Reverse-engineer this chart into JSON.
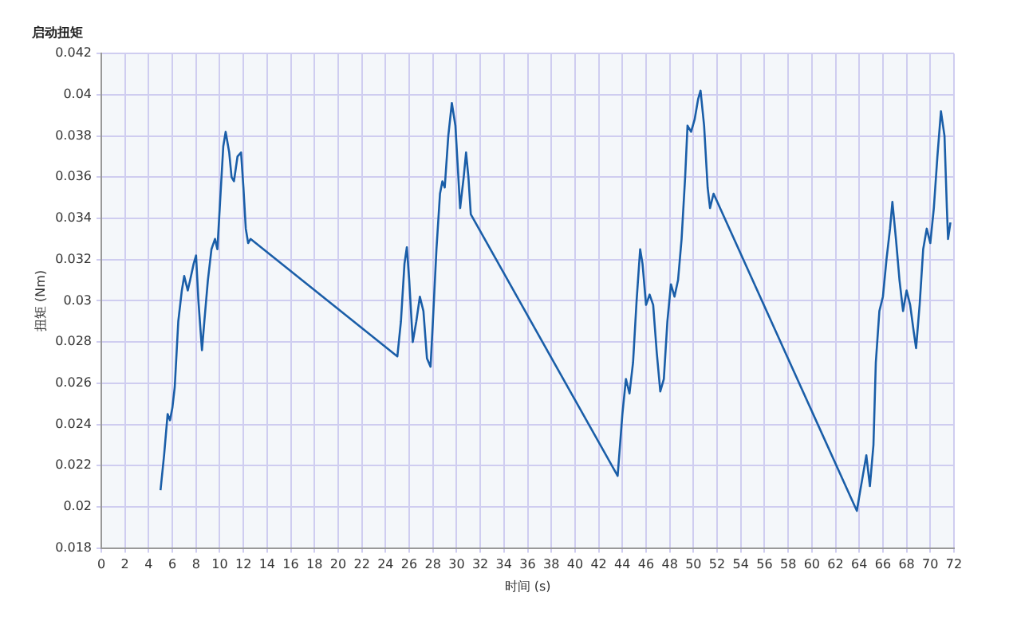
{
  "chart_data": {
    "type": "line",
    "title": "启动扭矩",
    "xlabel": "时间 (s)",
    "ylabel": "扭矩 (Nm)",
    "xlim": [
      0,
      72
    ],
    "xticks": [
      0,
      2,
      4,
      6,
      8,
      10,
      12,
      14,
      16,
      18,
      20,
      22,
      24,
      26,
      28,
      30,
      32,
      34,
      36,
      38,
      40,
      42,
      44,
      46,
      48,
      50,
      52,
      54,
      56,
      58,
      60,
      62,
      64,
      66,
      68,
      70,
      72
    ],
    "ylim": [
      0.018,
      0.042
    ],
    "yticks": [
      0.018,
      0.02,
      0.022,
      0.024,
      0.026,
      0.028,
      0.03,
      0.032,
      0.034,
      0.036,
      0.038,
      0.04,
      0.042
    ],
    "grid": true,
    "marker": "none",
    "line_style": "solid",
    "series": [
      {
        "color": "#1a5ea8",
        "x": [
          5,
          5.3,
          5.6,
          5.8,
          6,
          6.2,
          6.5,
          6.8,
          7,
          7.3,
          7.5,
          7.8,
          8,
          8.2,
          8.5,
          8.7,
          9,
          9.3,
          9.6,
          9.8,
          10,
          10.3,
          10.5,
          10.8,
          11,
          11.2,
          11.5,
          11.8,
          12,
          12.2,
          12.4,
          12.6,
          25,
          25.3,
          25.6,
          25.8,
          26,
          26.3,
          26.6,
          26.9,
          27.2,
          27.5,
          27.8,
          28,
          28.3,
          28.6,
          28.8,
          29,
          29.3,
          29.6,
          29.9,
          30.1,
          30.3,
          30.6,
          30.8,
          31,
          31.2,
          43.6,
          44,
          44.3,
          44.6,
          44.9,
          45.2,
          45.5,
          45.7,
          46,
          46.3,
          46.6,
          46.9,
          47.2,
          47.5,
          47.8,
          48.1,
          48.4,
          48.7,
          49,
          49.3,
          49.5,
          49.8,
          50.1,
          50.4,
          50.6,
          50.9,
          51.2,
          51.4,
          51.7,
          63.8,
          64,
          64.3,
          64.6,
          64.9,
          65.2,
          65.4,
          65.7,
          66,
          66.3,
          66.6,
          66.8,
          67.1,
          67.4,
          67.7,
          68,
          68.3,
          68.6,
          68.8,
          69.1,
          69.4,
          69.7,
          70,
          70.3,
          70.6,
          70.9,
          71.2,
          71.4,
          71.5,
          71.7
        ],
        "values": [
          0.0208,
          0.0225,
          0.0245,
          0.0242,
          0.0248,
          0.0258,
          0.029,
          0.0305,
          0.0312,
          0.0305,
          0.031,
          0.0318,
          0.0322,
          0.03,
          0.0276,
          0.029,
          0.031,
          0.0325,
          0.033,
          0.0325,
          0.0345,
          0.0375,
          0.0382,
          0.0372,
          0.036,
          0.0358,
          0.037,
          0.0372,
          0.0355,
          0.0335,
          0.0328,
          0.033,
          0.0273,
          0.029,
          0.0318,
          0.0326,
          0.031,
          0.028,
          0.029,
          0.0302,
          0.0295,
          0.0272,
          0.0268,
          0.029,
          0.0325,
          0.0352,
          0.0358,
          0.0355,
          0.038,
          0.0396,
          0.0385,
          0.0365,
          0.0345,
          0.036,
          0.0372,
          0.036,
          0.0342,
          0.0215,
          0.0245,
          0.0262,
          0.0255,
          0.027,
          0.03,
          0.0325,
          0.0318,
          0.0298,
          0.0303,
          0.0298,
          0.0275,
          0.0256,
          0.0262,
          0.029,
          0.0308,
          0.0302,
          0.031,
          0.033,
          0.036,
          0.0385,
          0.0382,
          0.0388,
          0.0398,
          0.0402,
          0.0385,
          0.0355,
          0.0345,
          0.0352,
          0.0198,
          0.0205,
          0.0215,
          0.0225,
          0.021,
          0.023,
          0.027,
          0.0295,
          0.0302,
          0.032,
          0.0335,
          0.0348,
          0.033,
          0.031,
          0.0295,
          0.0305,
          0.0298,
          0.0285,
          0.0277,
          0.0298,
          0.0325,
          0.0335,
          0.0328,
          0.0345,
          0.037,
          0.0392,
          0.038,
          0.0345,
          0.033,
          0.0338
        ]
      }
    ]
  }
}
